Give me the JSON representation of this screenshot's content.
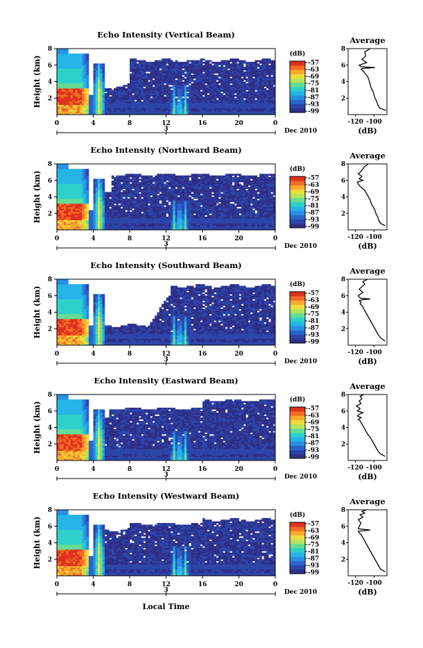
{
  "colors": {
    "background": "#ffffff",
    "colormap": [
      "#2e2f86",
      "#2d45a8",
      "#2a64cc",
      "#2a8ee3",
      "#25b4e6",
      "#2ed1c9",
      "#65dd95",
      "#b6e45c",
      "#eedd3c",
      "#f9aa2e",
      "#f26b25",
      "#e0301c"
    ]
  },
  "chart_data": [
    {
      "type": "heatmap",
      "title": "Echo Intensity (Vertical Beam)",
      "ylabel": "Height (km)",
      "xlabel": "",
      "x_ticks": [
        "0",
        "4",
        "8",
        "12",
        "16",
        "20",
        "0"
      ],
      "x_day_label": "3",
      "date_label": "Dec 2010",
      "y_ticks": [
        "2",
        "4",
        "6",
        "8"
      ],
      "colorbar": {
        "unit": "(dB)",
        "ticks": [
          "-57",
          "-63",
          "-69",
          "-75",
          "-81",
          "-87",
          "-93",
          "-99"
        ]
      },
      "profile": {
        "title": "Average",
        "xlabel": "(dB)",
        "x_ticks": [
          "-120",
          "-100"
        ],
        "y_ticks": [
          "2",
          "4",
          "6",
          "8"
        ],
        "x": [
          -87,
          -94,
          -96,
          -97,
          -99,
          -100,
          -101,
          -103,
          -104,
          -105,
          -106,
          -108,
          -110,
          -111,
          -113,
          -114,
          -112,
          -99,
          -114,
          -116,
          -108,
          -113,
          -109,
          -110,
          -104
        ],
        "y": [
          0.5,
          0.8,
          1.2,
          1.6,
          2.0,
          2.4,
          2.8,
          3.2,
          3.6,
          4.0,
          4.4,
          4.8,
          5.0,
          5.2,
          5.4,
          5.5,
          5.6,
          5.7,
          5.8,
          6.0,
          6.3,
          6.7,
          7.1,
          7.6,
          8.0
        ]
      }
    },
    {
      "type": "heatmap",
      "title": "Echo Intensity (Northward Beam)",
      "ylabel": "Height (km)",
      "xlabel": "",
      "x_ticks": [
        "0",
        "4",
        "8",
        "12",
        "16",
        "20",
        "0"
      ],
      "x_day_label": "3",
      "date_label": "Dec 2010",
      "y_ticks": [
        "2",
        "4",
        "6",
        "8"
      ],
      "colorbar": {
        "unit": "(dB)",
        "ticks": [
          "-57",
          "-63",
          "-69",
          "-75",
          "-81",
          "-87",
          "-93",
          "-99"
        ]
      },
      "profile": {
        "title": "Average",
        "xlabel": "(dB)",
        "x_ticks": [
          "-120",
          "-100"
        ],
        "y_ticks": [
          "2",
          "4",
          "6",
          "8"
        ],
        "x": [
          -88,
          -93,
          -95,
          -96,
          -98,
          -99,
          -101,
          -103,
          -104,
          -106,
          -108,
          -110,
          -112,
          -114,
          -116,
          -117,
          -118,
          -112,
          -116,
          -113,
          -117,
          -114,
          -112,
          -110,
          -106
        ],
        "y": [
          0.5,
          0.8,
          1.2,
          1.6,
          2.0,
          2.4,
          2.8,
          3.2,
          3.6,
          4.0,
          4.4,
          4.8,
          5.0,
          5.2,
          5.4,
          5.6,
          5.8,
          6.0,
          6.2,
          6.5,
          6.8,
          7.1,
          7.4,
          7.7,
          8.0
        ]
      }
    },
    {
      "type": "heatmap",
      "title": "Echo Intensity (Southward Beam)",
      "ylabel": "Height (km)",
      "xlabel": "",
      "x_ticks": [
        "0",
        "4",
        "8",
        "12",
        "16",
        "20",
        "0"
      ],
      "x_day_label": "3",
      "date_label": "Dec 2010",
      "y_ticks": [
        "2",
        "4",
        "6",
        "8"
      ],
      "colorbar": {
        "unit": "(dB)",
        "ticks": [
          "-57",
          "-63",
          "-69",
          "-75",
          "-81",
          "-87",
          "-93",
          "-99"
        ]
      },
      "profile": {
        "title": "Average",
        "xlabel": "(dB)",
        "x_ticks": [
          "-120",
          "-100"
        ],
        "y_ticks": [
          "2",
          "4",
          "6",
          "8"
        ],
        "x": [
          -88,
          -92,
          -95,
          -97,
          -99,
          -101,
          -103,
          -105,
          -107,
          -109,
          -111,
          -113,
          -115,
          -114,
          -116,
          -113,
          -104,
          -115,
          -117,
          -112,
          -116,
          -113,
          -110,
          -112,
          -107
        ],
        "y": [
          0.5,
          0.8,
          1.2,
          1.6,
          2.0,
          2.4,
          2.8,
          3.2,
          3.6,
          4.0,
          4.4,
          4.8,
          5.0,
          5.2,
          5.4,
          5.5,
          5.6,
          5.7,
          6.0,
          6.4,
          6.8,
          7.1,
          7.4,
          7.7,
          8.0
        ]
      }
    },
    {
      "type": "heatmap",
      "title": "Echo Intensity (Eastward Beam)",
      "ylabel": "Height (km)",
      "xlabel": "",
      "x_ticks": [
        "0",
        "4",
        "8",
        "12",
        "16",
        "20",
        "0"
      ],
      "x_day_label": "3",
      "date_label": "Dec 2010",
      "y_ticks": [
        "2",
        "4",
        "6",
        "8"
      ],
      "colorbar": {
        "unit": "(dB)",
        "ticks": [
          "-57",
          "-63",
          "-69",
          "-75",
          "-81",
          "-87",
          "-93",
          "-99"
        ]
      },
      "profile": {
        "title": "Average",
        "xlabel": "(dB)",
        "x_ticks": [
          "-120",
          "-100"
        ],
        "y_ticks": [
          "2",
          "4",
          "6",
          "8"
        ],
        "x": [
          -88,
          -93,
          -96,
          -98,
          -100,
          -102,
          -104,
          -107,
          -109,
          -111,
          -113,
          -115,
          -117,
          -114,
          -118,
          -116,
          -112,
          -118,
          -115,
          -119,
          -114,
          -116,
          -113,
          -115,
          -111
        ],
        "y": [
          0.5,
          0.8,
          1.2,
          1.6,
          2.0,
          2.4,
          2.8,
          3.2,
          3.6,
          4.0,
          4.4,
          4.8,
          5.0,
          5.2,
          5.4,
          5.6,
          5.8,
          6.0,
          6.3,
          6.6,
          6.9,
          7.2,
          7.5,
          7.8,
          8.0
        ]
      }
    },
    {
      "type": "heatmap",
      "title": "Echo Intensity (Westward Beam)",
      "ylabel": "Height (km)",
      "xlabel": "Local Time",
      "x_ticks": [
        "0",
        "4",
        "8",
        "12",
        "16",
        "20",
        "0"
      ],
      "x_day_label": "3",
      "date_label": "Dec 2010",
      "y_ticks": [
        "2",
        "4",
        "6",
        "8"
      ],
      "colorbar": {
        "unit": "(dB)",
        "ticks": [
          "-57",
          "-63",
          "-69",
          "-75",
          "-81",
          "-87",
          "-93",
          "-99"
        ]
      },
      "profile": {
        "title": "Average",
        "xlabel": "(dB)",
        "x_ticks": [
          "-120",
          "-100"
        ],
        "y_ticks": [
          "2",
          "4",
          "6",
          "8"
        ],
        "x": [
          -88,
          -93,
          -95,
          -97,
          -99,
          -101,
          -103,
          -105,
          -107,
          -109,
          -111,
          -113,
          -114,
          -116,
          -117,
          -104,
          -117,
          -116,
          -114,
          -117,
          -112,
          -115,
          -110,
          -113,
          -108
        ],
        "y": [
          0.5,
          0.8,
          1.2,
          1.6,
          2.0,
          2.4,
          2.8,
          3.2,
          3.6,
          4.0,
          4.4,
          4.8,
          5.0,
          5.2,
          5.4,
          5.55,
          5.7,
          6.0,
          6.4,
          6.8,
          7.1,
          7.4,
          7.6,
          7.8,
          8.0
        ]
      }
    }
  ]
}
